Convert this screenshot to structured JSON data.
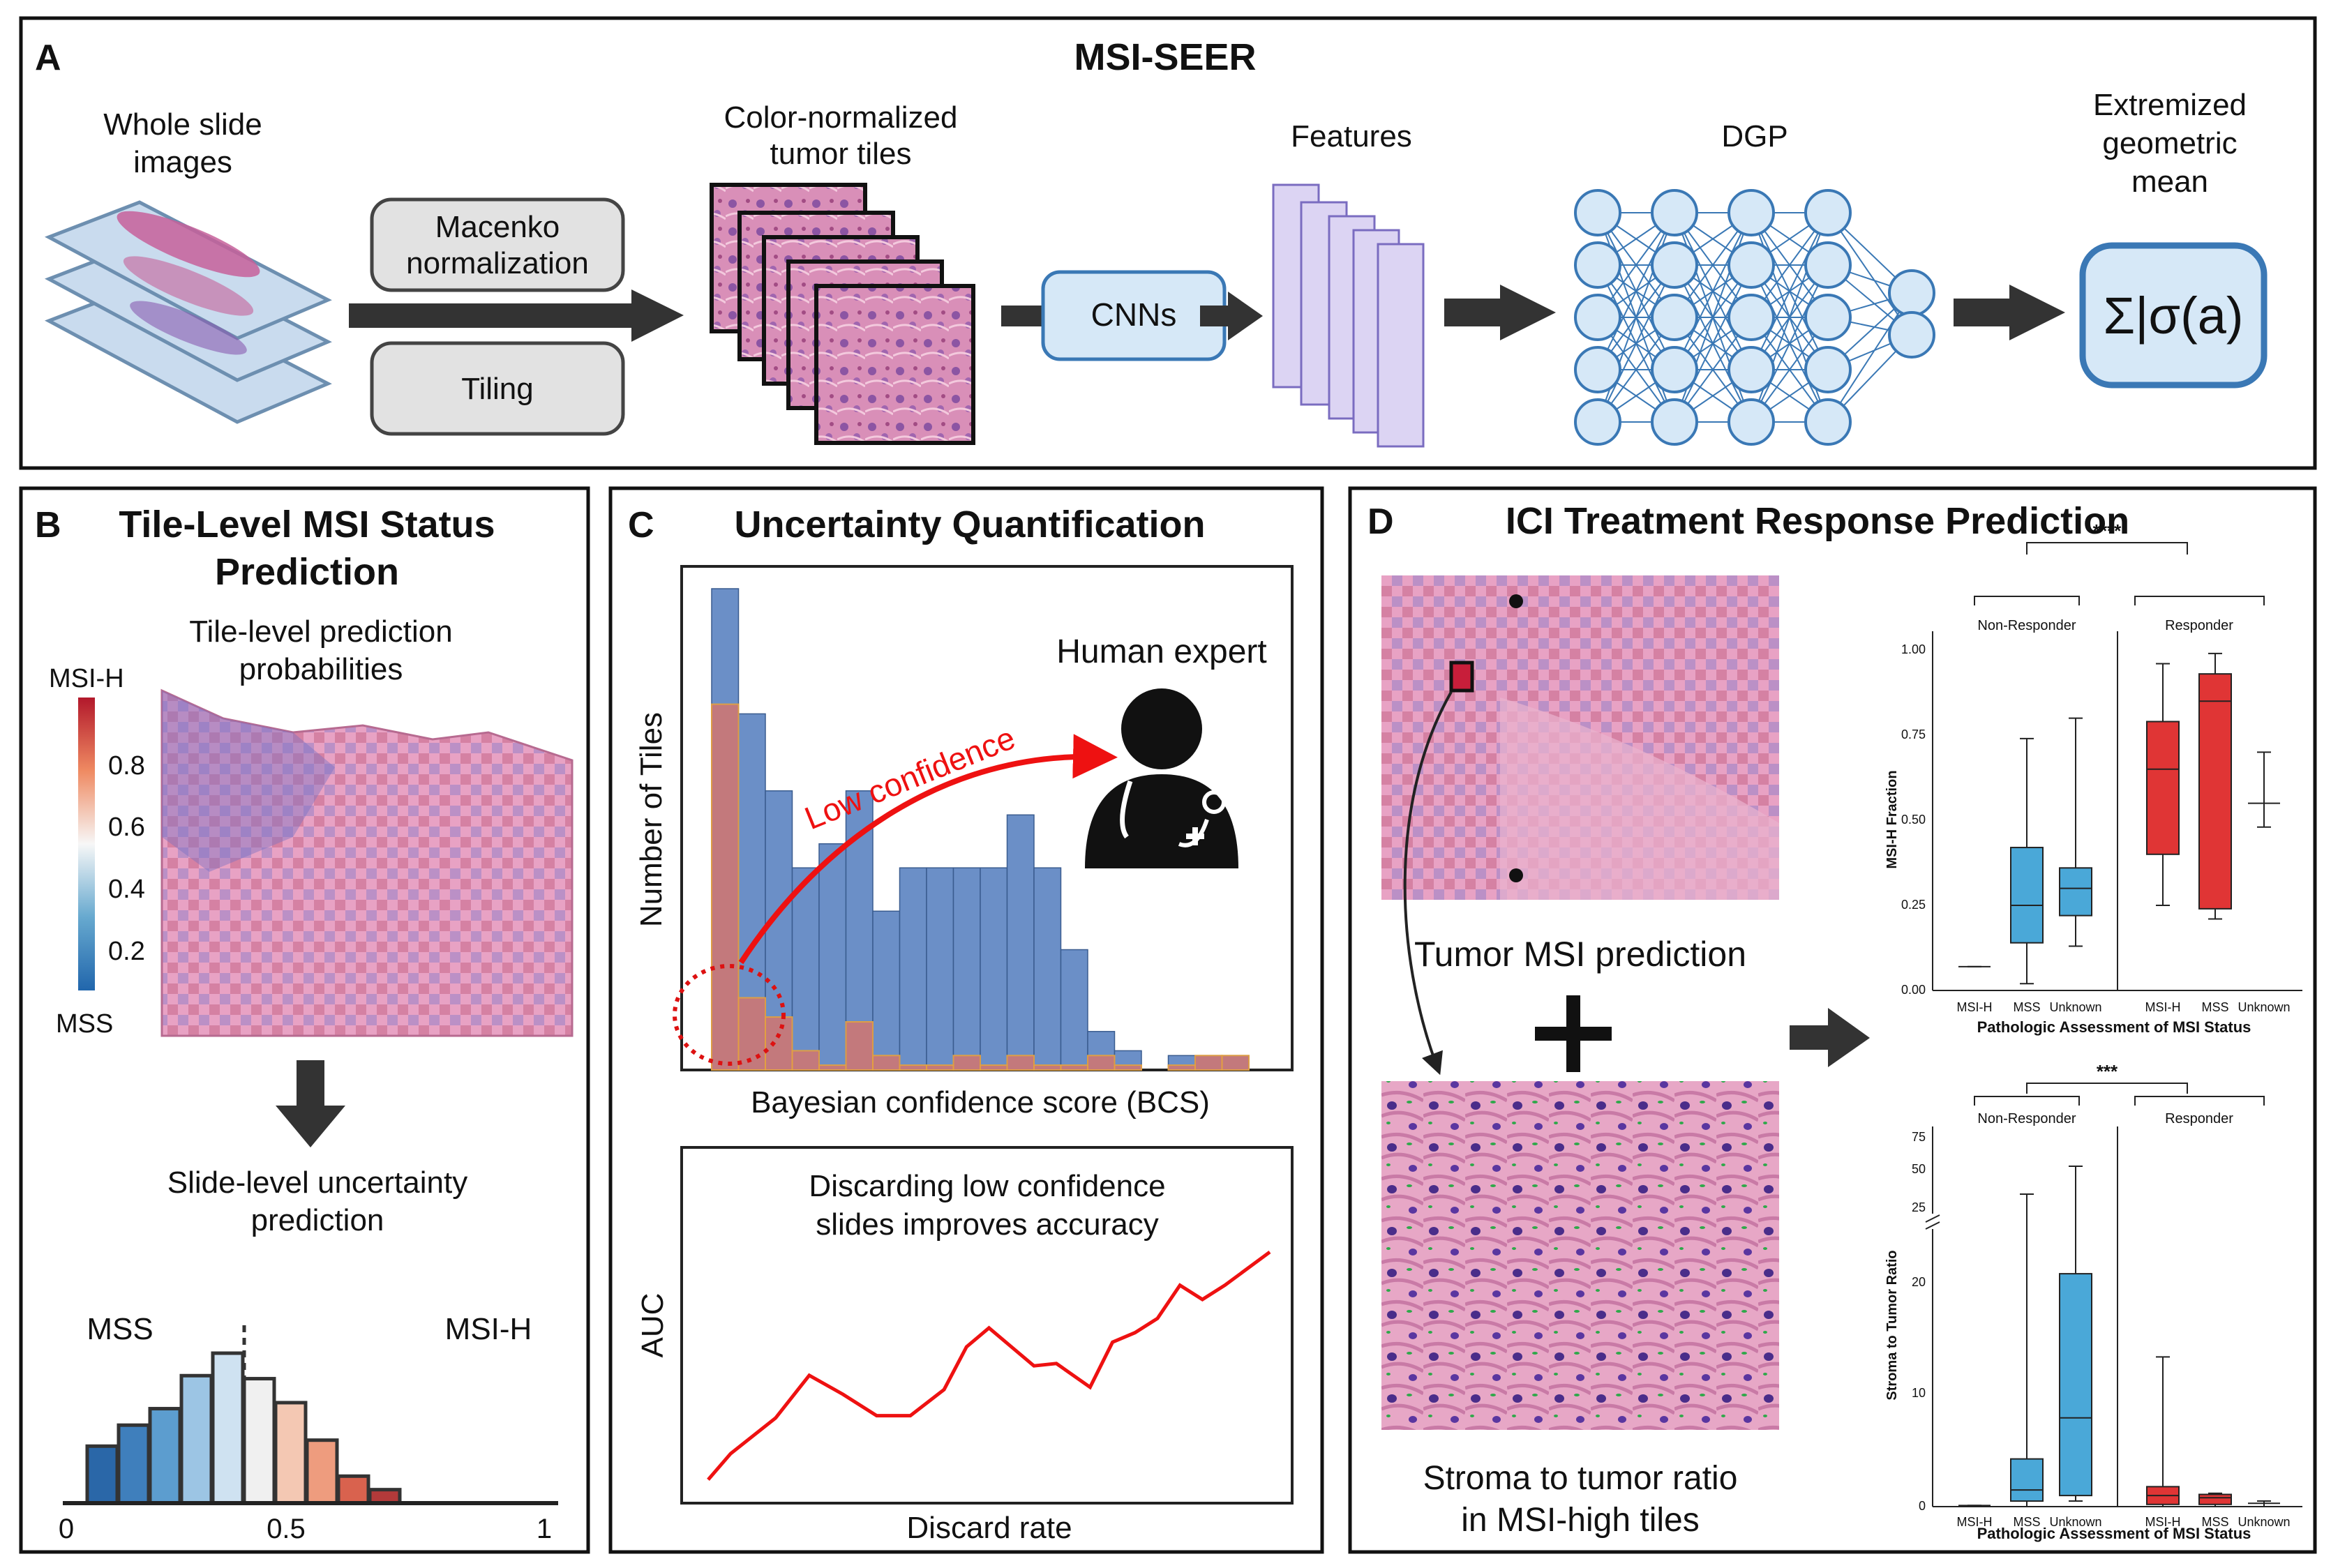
{
  "panel_a": {
    "letter": "A",
    "title": "MSI-SEER",
    "wsi_label": [
      "Whole slide",
      "images"
    ],
    "macenko_label": [
      "Macenko",
      "normalization"
    ],
    "tiling_label": "Tiling",
    "tiles_label": [
      "Color-normalized",
      "tumor tiles"
    ],
    "cnn_label": "CNNs",
    "features_label": "Features",
    "dgp_label": "DGP",
    "egm_label": [
      "Extremized",
      "geometric",
      "mean"
    ],
    "formula": "Σ|σ(a)"
  },
  "panel_b": {
    "letter": "B",
    "title": [
      "Tile-Level MSI Status",
      "Prediction"
    ],
    "subtitle": [
      "Tile-level prediction",
      "probabilities"
    ],
    "colorbar_top": "MSI-H",
    "colorbar_bottom": "MSS",
    "colorbar_ticks": [
      "0.8",
      "0.6",
      "0.4",
      "0.2"
    ],
    "slide_label": [
      "Slide-level uncertainty",
      "prediction"
    ],
    "left_label": "MSS",
    "right_label": "MSI-H",
    "x_ticks": [
      "0",
      "0.5",
      "1"
    ]
  },
  "panel_c": {
    "letter": "C",
    "title": "Uncertainty Quantification",
    "y_label": "Number of Tiles",
    "x_label": "Bayesian confidence score (BCS)",
    "expert_label": "Human expert",
    "low_conf_label": "Low confidence",
    "auc_label": "AUC",
    "discard_label": "Discard rate",
    "note": [
      "Discarding low confidence",
      "slides improves accuracy"
    ]
  },
  "panel_d": {
    "letter": "D",
    "title": "ICI Treatment Response Prediction",
    "tumor_label": "Tumor MSI prediction",
    "stroma_label": [
      "Stroma to tumor ratio",
      "in MSI-high tiles"
    ],
    "plot1": {
      "sig": "****",
      "group_left": "Non-Responder",
      "group_right": "Responder",
      "y_label": "MSI-H Fraction",
      "y_ticks": [
        "1.00",
        "0.75",
        "0.50",
        "0.25",
        "0.00"
      ],
      "x_ticks": [
        "MSI-H",
        "MSS",
        "Unknown",
        "MSI-H",
        "MSS",
        "Unknown"
      ],
      "x_label": "Pathologic Assessment of MSI Status"
    },
    "plot2": {
      "sig": "***",
      "group_left": "Non-Responder",
      "group_right": "Responder",
      "y_label": "Stroma to Tumor Ratio",
      "y_ticks_top": [
        "75",
        "50",
        "25"
      ],
      "y_ticks_bottom": [
        "20",
        "10",
        "0"
      ],
      "x_ticks": [
        "MSI-H",
        "MSS",
        "Unknown",
        "MSI-H",
        "MSS",
        "Unknown"
      ],
      "x_label": "Pathologic Assessment of MSI Status"
    }
  },
  "colors": {
    "dark_arrow": "#333333",
    "node": "#d6e8f7",
    "node_stroke": "#3a78b5",
    "red_curve": "#ee1111",
    "hist_blue": "#6b8fc7",
    "hist_red": "#c87878",
    "box_blue": "#4aa8d8",
    "box_red": "#e03535"
  },
  "chart_data": [
    {
      "type": "bar",
      "chart": "panel-b-slide-level-histogram",
      "x_ticks": [
        "0",
        "0.5",
        "1"
      ],
      "bins": [
        0.05,
        0.15,
        0.25,
        0.35,
        0.45,
        0.55,
        0.65,
        0.75,
        0.85,
        0.95
      ],
      "values": [
        3.8,
        5.2,
        6.3,
        8.5,
        10,
        8.3,
        6.7,
        4.2,
        1.8,
        0.9
      ],
      "threshold": 0.5
    },
    {
      "type": "bar",
      "chart": "panel-c-bcs-histogram",
      "x_label": "Bayesian confidence score (BCS)",
      "y_label": "Number of Tiles",
      "series": [
        {
          "color": "blue",
          "values": [
            100,
            74,
            58,
            42,
            47,
            58,
            33,
            42,
            42,
            42,
            42,
            53,
            42,
            25,
            8,
            4,
            0,
            3,
            3,
            3
          ]
        },
        {
          "color": "red",
          "values": [
            76,
            15,
            11,
            4,
            1,
            10,
            3,
            1,
            1,
            3,
            1,
            3,
            1,
            1,
            3,
            1,
            0,
            1,
            3,
            3
          ]
        }
      ]
    },
    {
      "type": "line",
      "chart": "panel-c-auc-curve",
      "x_label": "Discard rate",
      "y_label": "AUC",
      "x": [
        0,
        0.04,
        0.12,
        0.18,
        0.24,
        0.3,
        0.36,
        0.42,
        0.46,
        0.5,
        0.54,
        0.58,
        0.62,
        0.68,
        0.72,
        0.76,
        0.8,
        0.84,
        0.88,
        0.92,
        1
      ],
      "y": [
        0.04,
        0.15,
        0.3,
        0.48,
        0.4,
        0.31,
        0.31,
        0.42,
        0.6,
        0.68,
        0.6,
        0.52,
        0.53,
        0.43,
        0.62,
        0.66,
        0.72,
        0.86,
        0.8,
        0.86,
        1.0
      ]
    },
    {
      "type": "box",
      "chart": "panel-d-msi-h-fraction",
      "y_label": "MSI-H Fraction",
      "ylim": [
        0,
        1
      ],
      "groups": [
        {
          "group": "Non-Responder",
          "category": "MSI-H",
          "median": 0.07,
          "q1": 0.07,
          "q3": 0.07,
          "min": 0.07,
          "max": 0.07
        },
        {
          "group": "Non-Responder",
          "category": "MSS",
          "median": 0.25,
          "q1": 0.14,
          "q3": 0.42,
          "min": 0.02,
          "max": 0.74
        },
        {
          "group": "Non-Responder",
          "category": "Unknown",
          "median": 0.3,
          "q1": 0.22,
          "q3": 0.36,
          "min": 0.13,
          "max": 0.8
        },
        {
          "group": "Responder",
          "category": "MSI-H",
          "median": 0.65,
          "q1": 0.4,
          "q3": 0.79,
          "min": 0.25,
          "max": 0.96
        },
        {
          "group": "Responder",
          "category": "MSS",
          "median": 0.85,
          "q1": 0.24,
          "q3": 0.93,
          "min": 0.21,
          "max": 0.99
        },
        {
          "group": "Responder",
          "category": "Unknown",
          "median": 0.55,
          "q1": 0.55,
          "q3": 0.55,
          "min": 0.48,
          "max": 0.7
        }
      ]
    },
    {
      "type": "box",
      "chart": "panel-d-stroma-to-tumor-ratio",
      "y_label": "Stroma to Tumor Ratio",
      "groups": [
        {
          "group": "Non-Responder",
          "category": "MSI-H",
          "median": 0.1,
          "q1": 0.1,
          "q3": 0.1,
          "min": 0.1,
          "max": 0.1
        },
        {
          "group": "Non-Responder",
          "category": "MSS",
          "median": 1.5,
          "q1": 0.5,
          "q3": 4.3,
          "min": 0,
          "max": 35
        },
        {
          "group": "Non-Responder",
          "category": "Unknown",
          "median": 8,
          "q1": 1,
          "q3": 21,
          "min": 0.5,
          "max": 55
        },
        {
          "group": "Responder",
          "category": "MSI-H",
          "median": 1,
          "q1": 0.2,
          "q3": 1.8,
          "min": 0,
          "max": 13.5
        },
        {
          "group": "Responder",
          "category": "MSS",
          "median": 0.8,
          "q1": 0.2,
          "q3": 1.1,
          "min": 0,
          "max": 1.2
        },
        {
          "group": "Responder",
          "category": "Unknown",
          "median": 0.3,
          "q1": 0.3,
          "q3": 0.3,
          "min": 0,
          "max": 0.5
        }
      ]
    }
  ]
}
